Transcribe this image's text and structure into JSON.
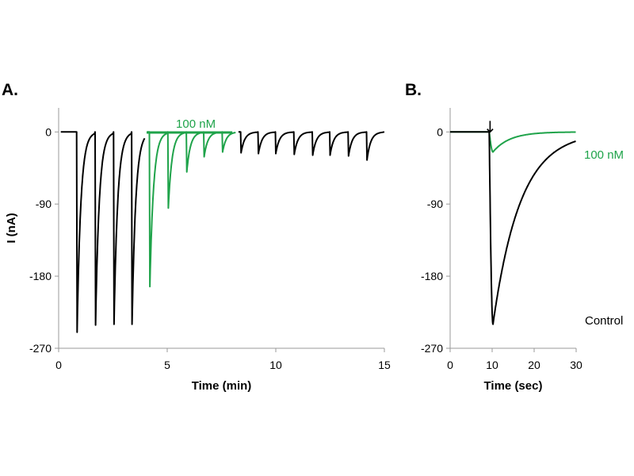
{
  "figure": {
    "panel_a_label": "A.",
    "panel_b_label": "B."
  },
  "chart_data": [
    {
      "type": "line",
      "panel": "A.",
      "xlabel": "Time (min)",
      "ylabel": "I (nA)",
      "xlim": [
        0,
        15
      ],
      "ylim": [
        -270,
        30
      ],
      "xticks": [
        0,
        5,
        10,
        15
      ],
      "yticks": [
        0,
        -90,
        -180,
        -270
      ],
      "grid": false,
      "annotation": {
        "text": "100 nM",
        "x_start": 4.05,
        "x_end": 8.0,
        "color": "#1fa34a"
      },
      "pulse_decay_min": 0.17,
      "series": [
        {
          "color": "#000000",
          "peaks": [
            {
              "t": 0.85,
              "y": -250
            },
            {
              "t": 1.7,
              "y": -241
            },
            {
              "t": 2.55,
              "y": -240
            },
            {
              "t": 3.38,
              "y": -240
            }
          ]
        },
        {
          "color": "#1fa34a",
          "peaks": [
            {
              "t": 4.2,
              "y": -193
            },
            {
              "t": 5.05,
              "y": -95
            },
            {
              "t": 5.9,
              "y": -50
            },
            {
              "t": 6.7,
              "y": -31
            },
            {
              "t": 7.55,
              "y": -25
            }
          ]
        },
        {
          "color": "#000000",
          "peaks": [
            {
              "t": 8.4,
              "y": -26
            },
            {
              "t": 9.2,
              "y": -27
            },
            {
              "t": 10.0,
              "y": -27
            },
            {
              "t": 10.85,
              "y": -28
            },
            {
              "t": 11.7,
              "y": -29
            },
            {
              "t": 12.5,
              "y": -29
            },
            {
              "t": 13.35,
              "y": -30
            },
            {
              "t": 14.2,
              "y": -35
            }
          ]
        }
      ]
    },
    {
      "type": "line",
      "panel": "B.",
      "xlabel": "Time (sec)",
      "ylabel": "",
      "xlim": [
        0,
        30
      ],
      "ylim": [
        -270,
        30
      ],
      "xticks": [
        0,
        10,
        20,
        30
      ],
      "yticks": [
        0,
        -90,
        -180,
        -270
      ],
      "grid": false,
      "marker": {
        "symbol": "↓",
        "x": 9.5
      },
      "series": [
        {
          "name": "Control",
          "color": "#000000",
          "onset": 9.3,
          "peak_t": 10.2,
          "peak_y": -240,
          "tau": 6.5,
          "end_t": 30
        },
        {
          "name": "100 nM",
          "color": "#1fa34a",
          "onset": 9.3,
          "peak_t": 10.2,
          "peak_y": -25,
          "tau": 4.0,
          "end_t": 30
        }
      ]
    }
  ]
}
